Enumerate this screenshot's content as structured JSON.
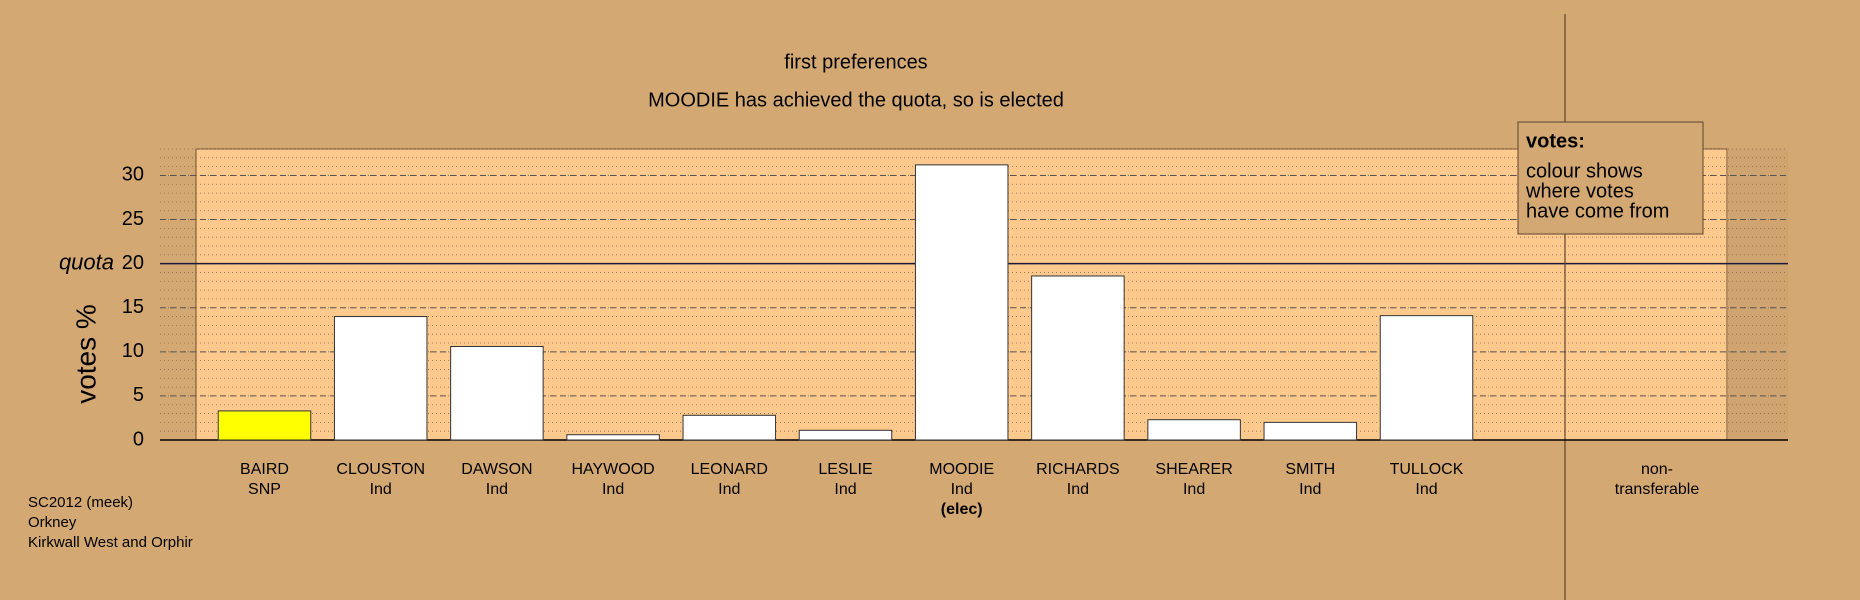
{
  "chart_data": {
    "type": "bar",
    "title": "first preferences",
    "subtitle": "MOODIE has achieved the quota, so is elected",
    "y_label": "votes %",
    "categories": [
      "BAIRD",
      "CLOUSTON",
      "DAWSON",
      "HAYWOOD",
      "LEONARD",
      "LESLIE",
      "MOODIE",
      "RICHARDS",
      "SHEARER",
      "SMITH",
      "TULLOCK"
    ],
    "parties": [
      "SNP",
      "Ind",
      "Ind",
      "Ind",
      "Ind",
      "Ind",
      "Ind",
      "Ind",
      "Ind",
      "Ind",
      "Ind"
    ],
    "notes": [
      null,
      null,
      null,
      null,
      null,
      null,
      "(elec)",
      null,
      null,
      null,
      null
    ],
    "values": [
      3.3,
      14.0,
      10.6,
      0.6,
      2.8,
      1.1,
      31.2,
      18.6,
      2.3,
      2.0,
      14.1
    ],
    "colors": [
      "#ffff00",
      "#ffffff",
      "#ffffff",
      "#ffffff",
      "#ffffff",
      "#ffffff",
      "#ffffff",
      "#ffffff",
      "#ffffff",
      "#ffffff",
      "#ffffff"
    ],
    "nontransferable_label": [
      "non-",
      "transferable"
    ],
    "quota": {
      "label": "quota",
      "value": 20
    },
    "ylim": [
      0,
      33
    ],
    "yticks": [
      0,
      5,
      10,
      15,
      20,
      25,
      30
    ],
    "grid": true,
    "legend": {
      "title": "votes:",
      "lines": [
        "colour shows",
        "where votes",
        "have come from"
      ]
    },
    "footer": [
      "SC2012 (meek)",
      "Orkney",
      "Kirkwall West and Orphir"
    ]
  }
}
